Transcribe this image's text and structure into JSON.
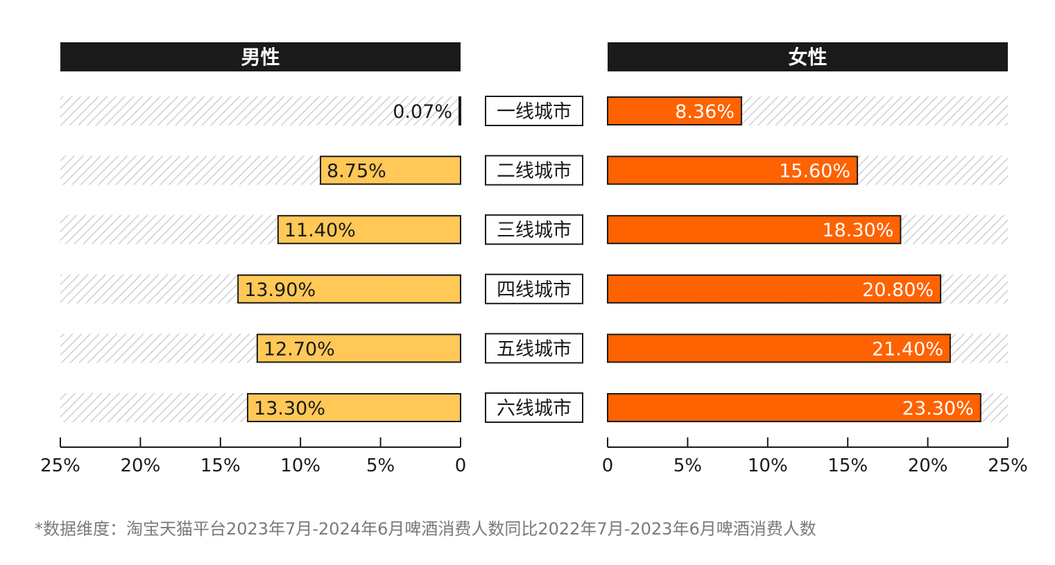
{
  "chart_data": {
    "type": "bar",
    "orientation": "horizontal-butterfly",
    "categories": [
      "一线城市",
      "二线城市",
      "三线城市",
      "四线城市",
      "五线城市",
      "六线城市"
    ],
    "series": [
      {
        "name": "男性",
        "values": [
          0.07,
          8.75,
          11.4,
          13.9,
          12.7,
          13.3
        ],
        "labels": [
          "0.07%",
          "8.75%",
          "11.40%",
          "13.90%",
          "12.70%",
          "13.30%"
        ],
        "color": "#FFC857",
        "label_color": "#1a1a1a"
      },
      {
        "name": "女性",
        "values": [
          8.36,
          15.6,
          18.3,
          20.8,
          21.4,
          23.3
        ],
        "labels": [
          "8.36%",
          "15.60%",
          "18.30%",
          "20.80%",
          "21.40%",
          "23.30%"
        ],
        "color": "#FF6200",
        "label_color": "#ffffff"
      }
    ],
    "xlim": [
      0,
      25
    ],
    "ticks": [
      0,
      5,
      10,
      15,
      20,
      25
    ],
    "left_tick_labels": [
      "25%",
      "20%",
      "15%",
      "10%",
      "5%",
      "0"
    ],
    "right_tick_labels": [
      "0",
      "5%",
      "10%",
      "15%",
      "20%",
      "25%"
    ],
    "unit": "%",
    "grid": false,
    "header_color": "#1a1a1a",
    "footnote": "*数据维度：淘宝天猫平台2023年7月-2024年6月啤酒消费人数同比2022年7月-2023年6月啤酒消费人数"
  }
}
